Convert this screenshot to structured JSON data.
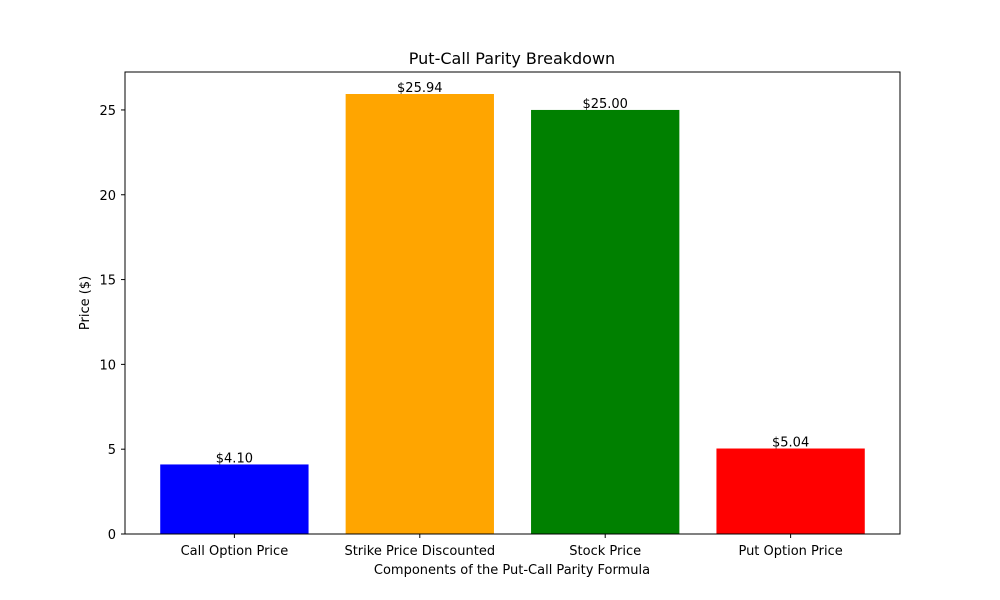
{
  "chart_data": {
    "type": "bar",
    "title": "Put-Call Parity Breakdown",
    "xlabel": "Components of the Put-Call Parity Formula",
    "ylabel": "Price ($)",
    "categories": [
      "Call Option Price",
      "Strike Price Discounted",
      "Stock Price",
      "Put Option Price"
    ],
    "values": [
      4.1,
      25.94,
      25.0,
      5.04
    ],
    "data_labels": [
      "$4.10",
      "$25.94",
      "$25.00",
      "$5.04"
    ],
    "colors": [
      "#0000ff",
      "#ffa500",
      "#008000",
      "#ff0000"
    ],
    "yticks": [
      0,
      5,
      10,
      15,
      20,
      25
    ],
    "ylim": [
      0,
      27.237
    ],
    "grid": false,
    "legend": "none"
  }
}
